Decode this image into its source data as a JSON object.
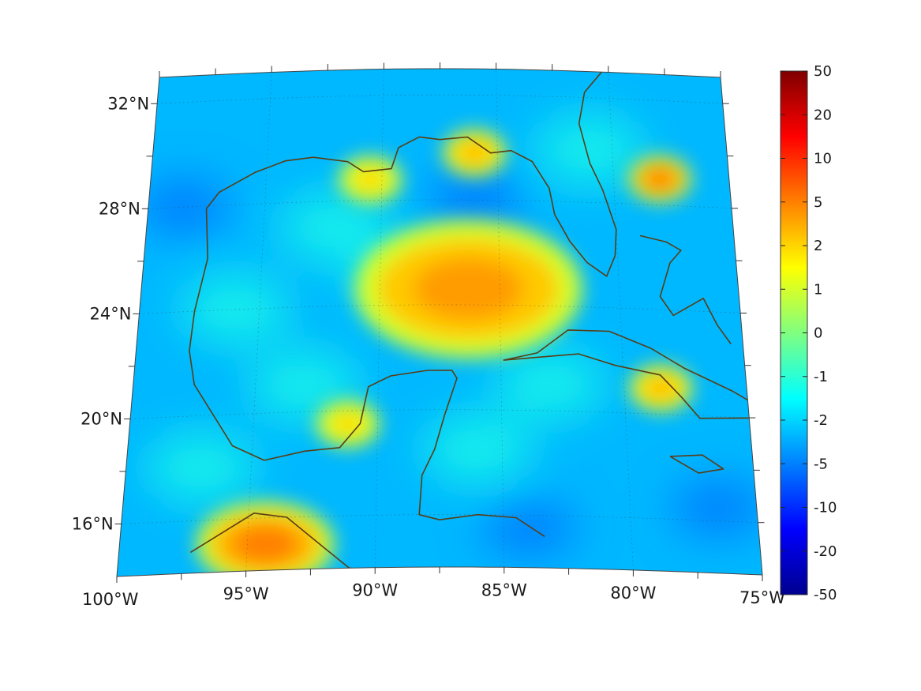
{
  "map": {
    "projection": "conic",
    "extent": {
      "lon_min": -100,
      "lon_max": -75,
      "lat_min": 14,
      "lat_max": 33
    },
    "grid": true,
    "coastline_color": "#5a3d14",
    "lon_labels": [
      "100°W",
      "95°W",
      "90°W",
      "85°W",
      "80°W",
      "75°W"
    ],
    "lat_labels": [
      "16°N",
      "20°N",
      "24°N",
      "28°N",
      "32°N"
    ],
    "field": {
      "colormap": "jet",
      "background_value": -3,
      "highlights": [
        {
          "name": "central-gulf",
          "lon": -86.3,
          "lat": 24.6,
          "value": 4
        },
        {
          "name": "florida-panhandle",
          "lon": -86.0,
          "lat": 29.8,
          "value": 3
        },
        {
          "name": "louisiana-coast",
          "lon": -90.5,
          "lat": 28.8,
          "value": 2
        },
        {
          "name": "mexico-pacific-coast",
          "lon": -94.3,
          "lat": 15.0,
          "value": 5
        },
        {
          "name": "cuba-south",
          "lon": -78.5,
          "lat": 21.0,
          "value": 3
        },
        {
          "name": "bahamas-north",
          "lon": -78.0,
          "lat": 29.0,
          "value": 5
        },
        {
          "name": "campeche-coast",
          "lon": -91.2,
          "lat": 19.5,
          "value": 2
        }
      ]
    }
  },
  "colorbar": {
    "tick_labels": [
      "50",
      "20",
      "10",
      "5",
      "2",
      "1",
      "0",
      "-1",
      "-2",
      "-5",
      "-10",
      "-20",
      "-50"
    ],
    "colors": [
      "#7f0000",
      "#ff0000",
      "#ff8000",
      "#ffff00",
      "#80ff80",
      "#00ffff",
      "#0080ff",
      "#0000ff",
      "#00008f"
    ]
  }
}
